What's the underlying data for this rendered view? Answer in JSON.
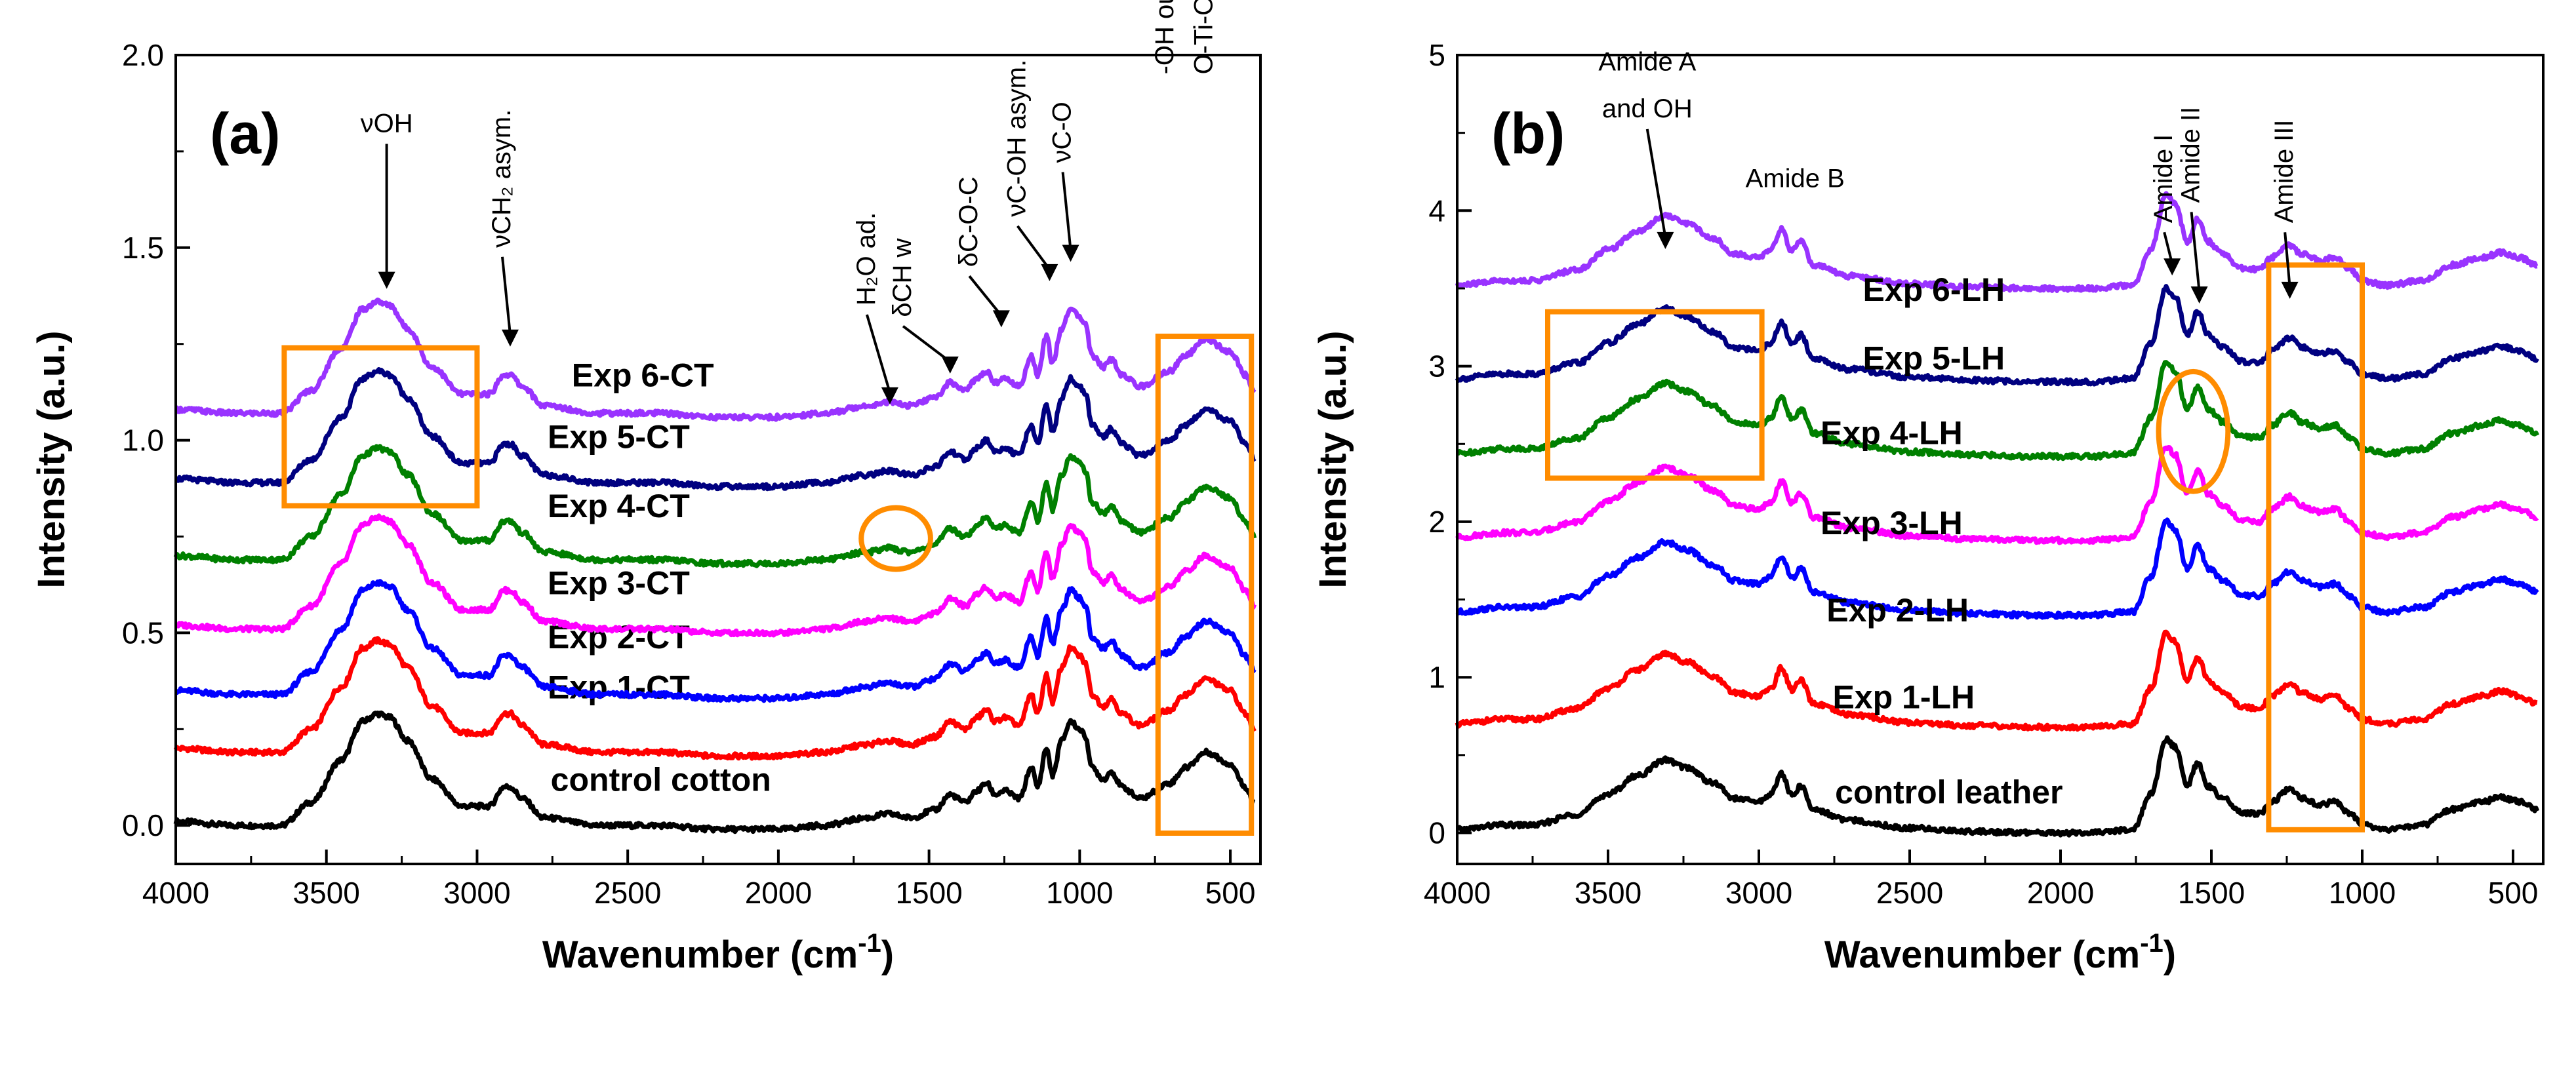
{
  "chart_data": [
    {
      "type": "line",
      "panel_label": "(a)",
      "xlabel": "Wavenumber (cm",
      "xlabel_sup": "-1",
      "xlabel_tail": ")",
      "ylabel": "Intensity (a.u.)",
      "xlim": [
        4000,
        400
      ],
      "ylim": [
        -0.1,
        2.0
      ],
      "xticks": [
        4000,
        3500,
        3000,
        2500,
        2000,
        1500,
        1000,
        500
      ],
      "yticks": [
        {
          "v": 0.0,
          "t": "0.0"
        },
        {
          "v": 0.5,
          "t": "0.5"
        },
        {
          "v": 1.0,
          "t": "1.0"
        },
        {
          "v": 1.5,
          "t": "1.5"
        },
        {
          "v": 2.0,
          "t": "2.0"
        }
      ],
      "series": [
        {
          "name": "control cotton",
          "color": "#000000",
          "offset": 0.0,
          "label_pos": [
            2390,
            0.09
          ],
          "points": [
            [
              4000,
              0.01
            ],
            [
              3800,
              0.0
            ],
            [
              3650,
              0.0
            ],
            [
              3550,
              0.06
            ],
            [
              3450,
              0.17
            ],
            [
              3380,
              0.27
            ],
            [
              3330,
              0.29
            ],
            [
              3290,
              0.28
            ],
            [
              3230,
              0.22
            ],
            [
              3150,
              0.12
            ],
            [
              3050,
              0.05
            ],
            [
              2960,
              0.05
            ],
            [
              2910,
              0.1
            ],
            [
              2890,
              0.1
            ],
            [
              2850,
              0.07
            ],
            [
              2780,
              0.02
            ],
            [
              2600,
              0.0
            ],
            [
              2400,
              0.0
            ],
            [
              2200,
              -0.01
            ],
            [
              2000,
              -0.01
            ],
            [
              1850,
              0.0
            ],
            [
              1700,
              0.02
            ],
            [
              1640,
              0.03
            ],
            [
              1560,
              0.02
            ],
            [
              1480,
              0.04
            ],
            [
              1430,
              0.08
            ],
            [
              1380,
              0.06
            ],
            [
              1340,
              0.09
            ],
            [
              1310,
              0.11
            ],
            [
              1280,
              0.08
            ],
            [
              1250,
              0.09
            ],
            [
              1200,
              0.07
            ],
            [
              1160,
              0.15
            ],
            [
              1140,
              0.1
            ],
            [
              1110,
              0.2
            ],
            [
              1090,
              0.13
            ],
            [
              1060,
              0.22
            ],
            [
              1030,
              0.27
            ],
            [
              1000,
              0.25
            ],
            [
              980,
              0.23
            ],
            [
              960,
              0.15
            ],
            [
              920,
              0.12
            ],
            [
              895,
              0.14
            ],
            [
              860,
              0.1
            ],
            [
              800,
              0.07
            ],
            [
              700,
              0.11
            ],
            [
              650,
              0.15
            ],
            [
              580,
              0.19
            ],
            [
              500,
              0.16
            ],
            [
              450,
              0.1
            ],
            [
              420,
              0.06
            ]
          ]
        },
        {
          "name": "Exp 1-CT",
          "color": "#ff0000",
          "offset": 0.19,
          "label_pos": [
            2530,
            0.33
          ]
        },
        {
          "name": "Exp 2-CT",
          "color": "#0000ff",
          "offset": 0.34,
          "label_pos": [
            2530,
            0.46
          ]
        },
        {
          "name": "Exp 3-CT",
          "color": "#ff00ff",
          "offset": 0.51,
          "label_pos": [
            2530,
            0.6
          ]
        },
        {
          "name": "Exp 4-CT",
          "color": "#008000",
          "offset": 0.69,
          "label_pos": [
            2530,
            0.8
          ]
        },
        {
          "name": "Exp 5-CT",
          "color": "#000080",
          "offset": 0.89,
          "label_pos": [
            2530,
            0.98
          ]
        },
        {
          "name": "Exp 6-CT",
          "color": "#9933ff",
          "offset": 1.07,
          "label_pos": [
            2450,
            1.14
          ]
        }
      ],
      "annotations": [
        {
          "text": "νOH",
          "x": 3300,
          "y": 1.8,
          "arrow_to": [
            3300,
            1.4
          ],
          "rotate": false
        },
        {
          "text": "νCH₂ asym.",
          "x": 2890,
          "y": 1.5,
          "arrow_to": [
            2890,
            1.25
          ],
          "rotate": true
        },
        {
          "text": "H₂O ad.",
          "x": 1680,
          "y": 1.35,
          "arrow_to": [
            1630,
            1.1
          ],
          "rotate": true
        },
        {
          "text": "δCH w",
          "x": 1560,
          "y": 1.32,
          "arrow_to": [
            1430,
            1.18
          ],
          "rotate": true
        },
        {
          "text": "δC-O-C",
          "x": 1340,
          "y": 1.45,
          "arrow_to": [
            1260,
            1.3
          ],
          "rotate": true
        },
        {
          "text": "νC-OH asym.",
          "x": 1180,
          "y": 1.58,
          "arrow_to": [
            1100,
            1.42
          ],
          "rotate": true
        },
        {
          "text": "νC-O",
          "x": 1030,
          "y": 1.72,
          "arrow_to": [
            1030,
            1.47
          ],
          "rotate": true
        },
        {
          "text": "-OH out-of-plane;",
          "x": 690,
          "y": 1.95,
          "rotate": true
        },
        {
          "text": "O-Ti-O",
          "x": 560,
          "y": 1.95,
          "rotate": true
        }
      ],
      "highlight_rects": [
        [
          3640,
          1.24,
          3000,
          0.83
        ],
        [
          740,
          1.27,
          430,
          -0.02
        ]
      ],
      "highlight_ellipses": [
        [
          1610,
          0.745,
          230,
          0.16
        ]
      ]
    },
    {
      "type": "line",
      "panel_label": "(b)",
      "xlabel": "Wavenumber (cm",
      "xlabel_sup": "-1",
      "xlabel_tail": ")",
      "ylabel": "Intensity (a.u.)",
      "xlim": [
        4000,
        400
      ],
      "ylim": [
        -0.2,
        5.0
      ],
      "xticks": [
        4000,
        3500,
        3000,
        2500,
        2000,
        1500,
        1000,
        500
      ],
      "yticks": [
        {
          "v": 0,
          "t": "0"
        },
        {
          "v": 1,
          "t": "1"
        },
        {
          "v": 2,
          "t": "2"
        },
        {
          "v": 3,
          "t": "3"
        },
        {
          "v": 4,
          "t": "4"
        },
        {
          "v": 5,
          "t": "5"
        }
      ],
      "series": [
        {
          "name": "control leather",
          "color": "#000000",
          "offset": 0.0,
          "label_pos": [
            2370,
            0.19
          ],
          "points": [
            [
              4000,
              0.02
            ],
            [
              3850,
              0.05
            ],
            [
              3750,
              0.05
            ],
            [
              3600,
              0.12
            ],
            [
              3500,
              0.25
            ],
            [
              3400,
              0.37
            ],
            [
              3310,
              0.47
            ],
            [
              3240,
              0.42
            ],
            [
              3150,
              0.32
            ],
            [
              3080,
              0.22
            ],
            [
              3000,
              0.2
            ],
            [
              2960,
              0.25
            ],
            [
              2925,
              0.38
            ],
            [
              2890,
              0.24
            ],
            [
              2860,
              0.3
            ],
            [
              2820,
              0.15
            ],
            [
              2700,
              0.08
            ],
            [
              2500,
              0.03
            ],
            [
              2300,
              0.01
            ],
            [
              2100,
              0.0
            ],
            [
              1900,
              0.0
            ],
            [
              1760,
              0.02
            ],
            [
              1700,
              0.25
            ],
            [
              1650,
              0.6
            ],
            [
              1620,
              0.55
            ],
            [
              1580,
              0.3
            ],
            [
              1545,
              0.45
            ],
            [
              1510,
              0.3
            ],
            [
              1460,
              0.22
            ],
            [
              1400,
              0.13
            ],
            [
              1340,
              0.12
            ],
            [
              1300,
              0.2
            ],
            [
              1240,
              0.28
            ],
            [
              1200,
              0.22
            ],
            [
              1140,
              0.18
            ],
            [
              1090,
              0.2
            ],
            [
              1040,
              0.12
            ],
            [
              1000,
              0.05
            ],
            [
              920,
              0.02
            ],
            [
              800,
              0.05
            ],
            [
              700,
              0.15
            ],
            [
              600,
              0.2
            ],
            [
              540,
              0.23
            ],
            [
              480,
              0.2
            ],
            [
              420,
              0.15
            ]
          ]
        },
        {
          "name": "Exp 1-LH",
          "color": "#ff0000",
          "offset": 0.68,
          "label_pos": [
            2520,
            0.8
          ]
        },
        {
          "name": "Exp 2-LH",
          "color": "#0000ff",
          "offset": 1.4,
          "label_pos": [
            2540,
            1.36
          ]
        },
        {
          "name": "Exp 3-LH",
          "color": "#ff00ff",
          "offset": 1.88,
          "label_pos": [
            2560,
            1.92
          ]
        },
        {
          "name": "Exp 4-LH",
          "color": "#008000",
          "offset": 2.42,
          "label_pos": [
            2560,
            2.5
          ]
        },
        {
          "name": "Exp 5-LH",
          "color": "#000080",
          "offset": 2.9,
          "label_pos": [
            2420,
            2.98
          ]
        },
        {
          "name": "Exp 6-LH",
          "color": "#9933ff",
          "offset": 3.5,
          "label_pos": [
            2420,
            3.42
          ]
        }
      ],
      "annotations": [
        {
          "text": "Amide A",
          "x": 3370,
          "y": 4.9,
          "rotate": false
        },
        {
          "text": "and OH",
          "x": 3370,
          "y": 4.6,
          "arrow_to": [
            3310,
            3.77
          ],
          "rotate": false
        },
        {
          "text": "Amide B",
          "x": 2880,
          "y": 4.15,
          "rotate": false
        },
        {
          "text": "Amide I",
          "x": 1630,
          "y": 3.92,
          "arrow_to": [
            1630,
            3.6
          ],
          "rotate": true
        },
        {
          "text": "Amide II",
          "x": 1540,
          "y": 4.05,
          "arrow_to": [
            1540,
            3.42
          ],
          "rotate": true
        },
        {
          "text": "Amide III",
          "x": 1230,
          "y": 3.92,
          "arrow_to": [
            1240,
            3.45
          ],
          "rotate": true
        }
      ],
      "highlight_rects": [
        [
          3700,
          3.35,
          2990,
          2.28
        ],
        [
          1310,
          3.65,
          1000,
          0.02
        ]
      ],
      "highlight_ellipses": [
        [
          1560,
          2.58,
          230,
          0.77
        ]
      ]
    }
  ],
  "colors": {
    "highlight": "#ff8c00",
    "axis": "#000000"
  }
}
